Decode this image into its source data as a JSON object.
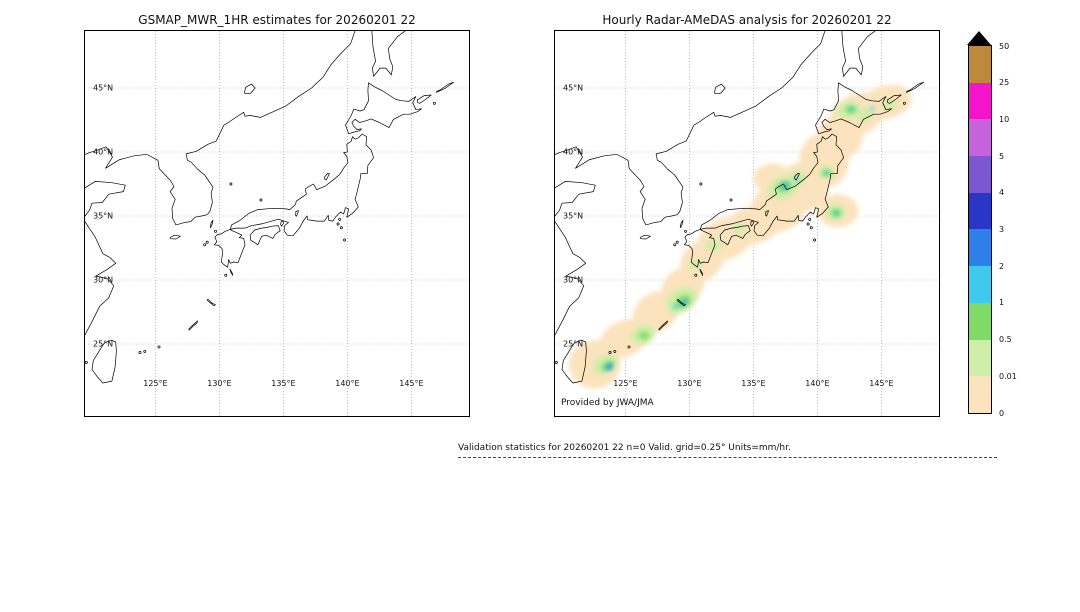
{
  "figure": {
    "panels": [
      {
        "id": "gsmap",
        "title": "GSMAP_MWR_1HR estimates for 20260201 22",
        "credit": ""
      },
      {
        "id": "radar",
        "title": "Hourly Radar-AMeDAS analysis for 20260201 22",
        "credit": "Provided by JWA/JMA"
      }
    ],
    "axes": {
      "lat_ticks": {
        "labels": [
          "45°N",
          "40°N",
          "35°N",
          "30°N",
          "25°N"
        ],
        "values": [
          45,
          40,
          35,
          30,
          25
        ]
      },
      "lon_ticks": {
        "labels": [
          "125°E",
          "130°E",
          "135°E",
          "140°E",
          "145°E"
        ],
        "values": [
          125,
          130,
          135,
          140,
          145
        ]
      }
    },
    "caption": "Validation statistics for 20260201 22  n=0 Valid. grid=0.25° Units=mm/hr.",
    "colorbar": {
      "tick_labels": [
        "50",
        "25",
        "10",
        "5",
        "4",
        "3",
        "2",
        "1",
        "0.5",
        "0.01",
        "0"
      ],
      "colors_top_to_bottom": [
        "#bd8a3c",
        "#f414cb",
        "#c563dc",
        "#7c58d0",
        "#2a36c6",
        "#2e7fe8",
        "#3fc9ec",
        "#7fda67",
        "#cfeea8",
        "#fbe3bd"
      ],
      "overflow_color": "#000000"
    }
  },
  "precipitation": {
    "blob_fields": "level,lon_deg,lat_deg,rx_deg,ry_deg,rot_deg",
    "levels_mm_per_hr": {
      "t0": "0-0.01",
      "g1": "0.01-0.5",
      "g2": "0.5-1",
      "c1": "1-2",
      "c2": "2-3",
      "b1": "3-4"
    },
    "blobs": [
      [
        "t0",
        122.6,
        23.4,
        2.0,
        1.9,
        0
      ],
      [
        "t0",
        124.9,
        25.4,
        2.0,
        1.4,
        -25
      ],
      [
        "t0",
        127.4,
        27.5,
        1.9,
        1.5,
        -30
      ],
      [
        "t0",
        129.5,
        29.5,
        1.8,
        1.4,
        -35
      ],
      [
        "t0",
        131.0,
        31.5,
        1.8,
        1.5,
        -35
      ],
      [
        "t0",
        132.8,
        33.2,
        2.2,
        1.6,
        -20
      ],
      [
        "t0",
        135.0,
        34.3,
        2.2,
        1.5,
        -15
      ],
      [
        "t0",
        137.0,
        35.7,
        2.3,
        1.9,
        -30
      ],
      [
        "t0",
        138.9,
        37.3,
        2.1,
        1.9,
        -40
      ],
      [
        "t0",
        140.5,
        39.3,
        1.9,
        2.1,
        -15
      ],
      [
        "t0",
        141.7,
        41.1,
        1.9,
        1.7,
        -25
      ],
      [
        "t0",
        143.1,
        42.9,
        2.3,
        1.6,
        -25
      ],
      [
        "t0",
        145.4,
        43.9,
        2.0,
        1.3,
        -15
      ],
      [
        "t0",
        141.6,
        35.4,
        1.6,
        1.3,
        0
      ],
      [
        "t0",
        136.5,
        37.9,
        1.5,
        1.2,
        0
      ],
      [
        "g1",
        129.4,
        28.4,
        1.3,
        0.9,
        -30
      ],
      [
        "g1",
        126.4,
        25.7,
        1.0,
        0.7,
        -20
      ],
      [
        "g1",
        123.4,
        23.4,
        1.0,
        0.65,
        -30
      ],
      [
        "g1",
        137.3,
        37.2,
        1.2,
        0.85,
        -20
      ],
      [
        "g1",
        138.4,
        37.9,
        0.75,
        0.55,
        -30
      ],
      [
        "g1",
        140.7,
        38.4,
        0.65,
        0.5,
        0
      ],
      [
        "g1",
        141.4,
        35.3,
        0.8,
        0.6,
        0
      ],
      [
        "g1",
        142.4,
        43.3,
        0.95,
        0.6,
        -20
      ],
      [
        "g1",
        143.7,
        42.9,
        0.7,
        0.5,
        -20
      ],
      [
        "g1",
        145.6,
        43.7,
        0.6,
        0.4,
        0
      ],
      [
        "g1",
        131.9,
        32.7,
        0.6,
        0.45,
        0
      ],
      [
        "g1",
        130.5,
        31.2,
        0.5,
        0.35,
        0
      ],
      [
        "g1",
        133.9,
        34.0,
        0.55,
        0.4,
        0
      ],
      [
        "g2",
        129.5,
        28.3,
        0.65,
        0.42,
        -30
      ],
      [
        "g2",
        137.4,
        37.3,
        0.6,
        0.4,
        -20
      ],
      [
        "g2",
        140.7,
        38.35,
        0.32,
        0.26,
        0
      ],
      [
        "g2",
        141.45,
        35.25,
        0.4,
        0.3,
        0
      ],
      [
        "g2",
        142.6,
        43.3,
        0.4,
        0.3,
        0
      ],
      [
        "g2",
        123.6,
        23.3,
        0.55,
        0.3,
        -35
      ],
      [
        "g2",
        126.45,
        25.65,
        0.4,
        0.28,
        0
      ],
      [
        "c1",
        137.45,
        37.35,
        0.32,
        0.2,
        -20
      ],
      [
        "c1",
        138.35,
        37.8,
        0.2,
        0.15,
        0
      ],
      [
        "c1",
        140.75,
        38.35,
        0.18,
        0.14,
        0
      ],
      [
        "c1",
        141.5,
        35.2,
        0.22,
        0.16,
        0
      ],
      [
        "c1",
        129.55,
        28.25,
        0.3,
        0.18,
        -30
      ],
      [
        "c1",
        128.9,
        27.9,
        0.2,
        0.14,
        -30
      ],
      [
        "c1",
        123.7,
        23.25,
        0.38,
        0.16,
        -35
      ],
      [
        "c1",
        142.7,
        43.35,
        0.2,
        0.14,
        0
      ],
      [
        "c1",
        144.3,
        43.4,
        0.18,
        0.12,
        0
      ],
      [
        "c2",
        137.5,
        37.3,
        0.16,
        0.1,
        0
      ],
      [
        "c2",
        123.75,
        23.2,
        0.22,
        0.1,
        -35
      ],
      [
        "c2",
        129.6,
        28.2,
        0.13,
        0.09,
        0
      ],
      [
        "b1",
        123.8,
        23.15,
        0.13,
        0.07,
        -35
      ]
    ]
  }
}
